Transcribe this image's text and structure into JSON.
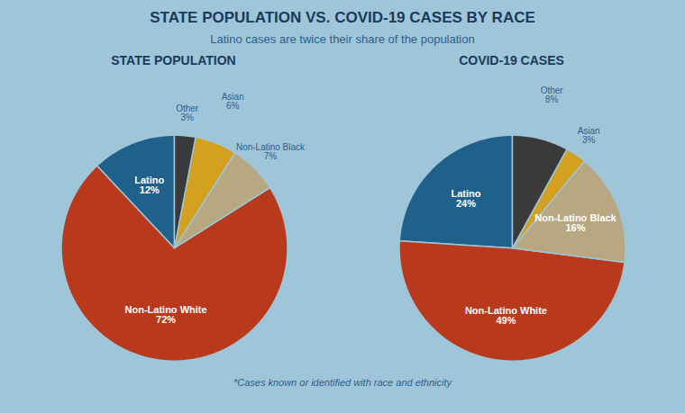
{
  "title": "STATE POPULATION VS. COVID-19 CASES BY RACE",
  "subtitle": "Latino cases are twice their share of the population",
  "footnote": "*Cases known or identified with race and ethnicity",
  "chart_data": [
    {
      "type": "pie",
      "title": "STATE POPULATION",
      "categories": [
        "Latino",
        "Non-Latino White",
        "Non-Latino Black",
        "Asian",
        "Other"
      ],
      "values": [
        12,
        72,
        7,
        6,
        3
      ],
      "value_labels": [
        "12%",
        "72%",
        "7%",
        "6%",
        "3%"
      ],
      "colors": [
        "#20618c",
        "#b8391c",
        "#b8a882",
        "#d4a020",
        "#3a3a3a"
      ],
      "data_labels": true
    },
    {
      "type": "pie",
      "title": "COVID-19 CASES",
      "categories": [
        "Latino",
        "Non-Latino White",
        "Non-Latino Black",
        "Asian",
        "Other"
      ],
      "values": [
        24,
        49,
        16,
        3,
        8
      ],
      "value_labels": [
        "24%",
        "49%",
        "16%",
        "3%",
        "8%"
      ],
      "colors": [
        "#20618c",
        "#b8391c",
        "#b8a882",
        "#d4a020",
        "#3a3a3a"
      ],
      "data_labels": true
    }
  ]
}
